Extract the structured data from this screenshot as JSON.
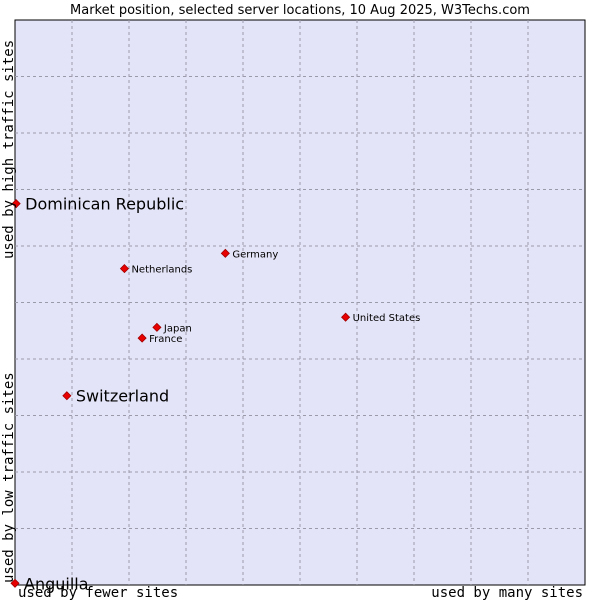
{
  "chart_data": {
    "type": "scatter",
    "title": "Market position, selected server locations, 10 Aug 2025, W3Techs.com",
    "xlabel_left": "used by fewer sites",
    "xlabel_right": "used by many sites",
    "ylabel_bottom": "used by low traffic sites",
    "ylabel_top": "used by high traffic sites",
    "xlim": [
      0,
      100
    ],
    "ylim": [
      0,
      100
    ],
    "grid": true,
    "colors": {
      "plot_background": "#e4e4f8",
      "point": "#e80000",
      "point_outline": "#a00000"
    },
    "points": [
      {
        "label": "Dominican Republic",
        "x": 0.2,
        "y": 67.5,
        "size": "large"
      },
      {
        "label": "Germany",
        "x": 36.9,
        "y": 58.7,
        "size": "small"
      },
      {
        "label": "Netherlands",
        "x": 19.2,
        "y": 56.0,
        "size": "small"
      },
      {
        "label": "United States",
        "x": 58.0,
        "y": 47.4,
        "size": "small"
      },
      {
        "label": "Japan",
        "x": 24.9,
        "y": 45.6,
        "size": "small"
      },
      {
        "label": "France",
        "x": 22.3,
        "y": 43.7,
        "size": "small"
      },
      {
        "label": "Switzerland",
        "x": 9.1,
        "y": 33.5,
        "size": "large"
      },
      {
        "label": "Anguilla",
        "x": 0.0,
        "y": 0.3,
        "size": "large"
      }
    ]
  }
}
